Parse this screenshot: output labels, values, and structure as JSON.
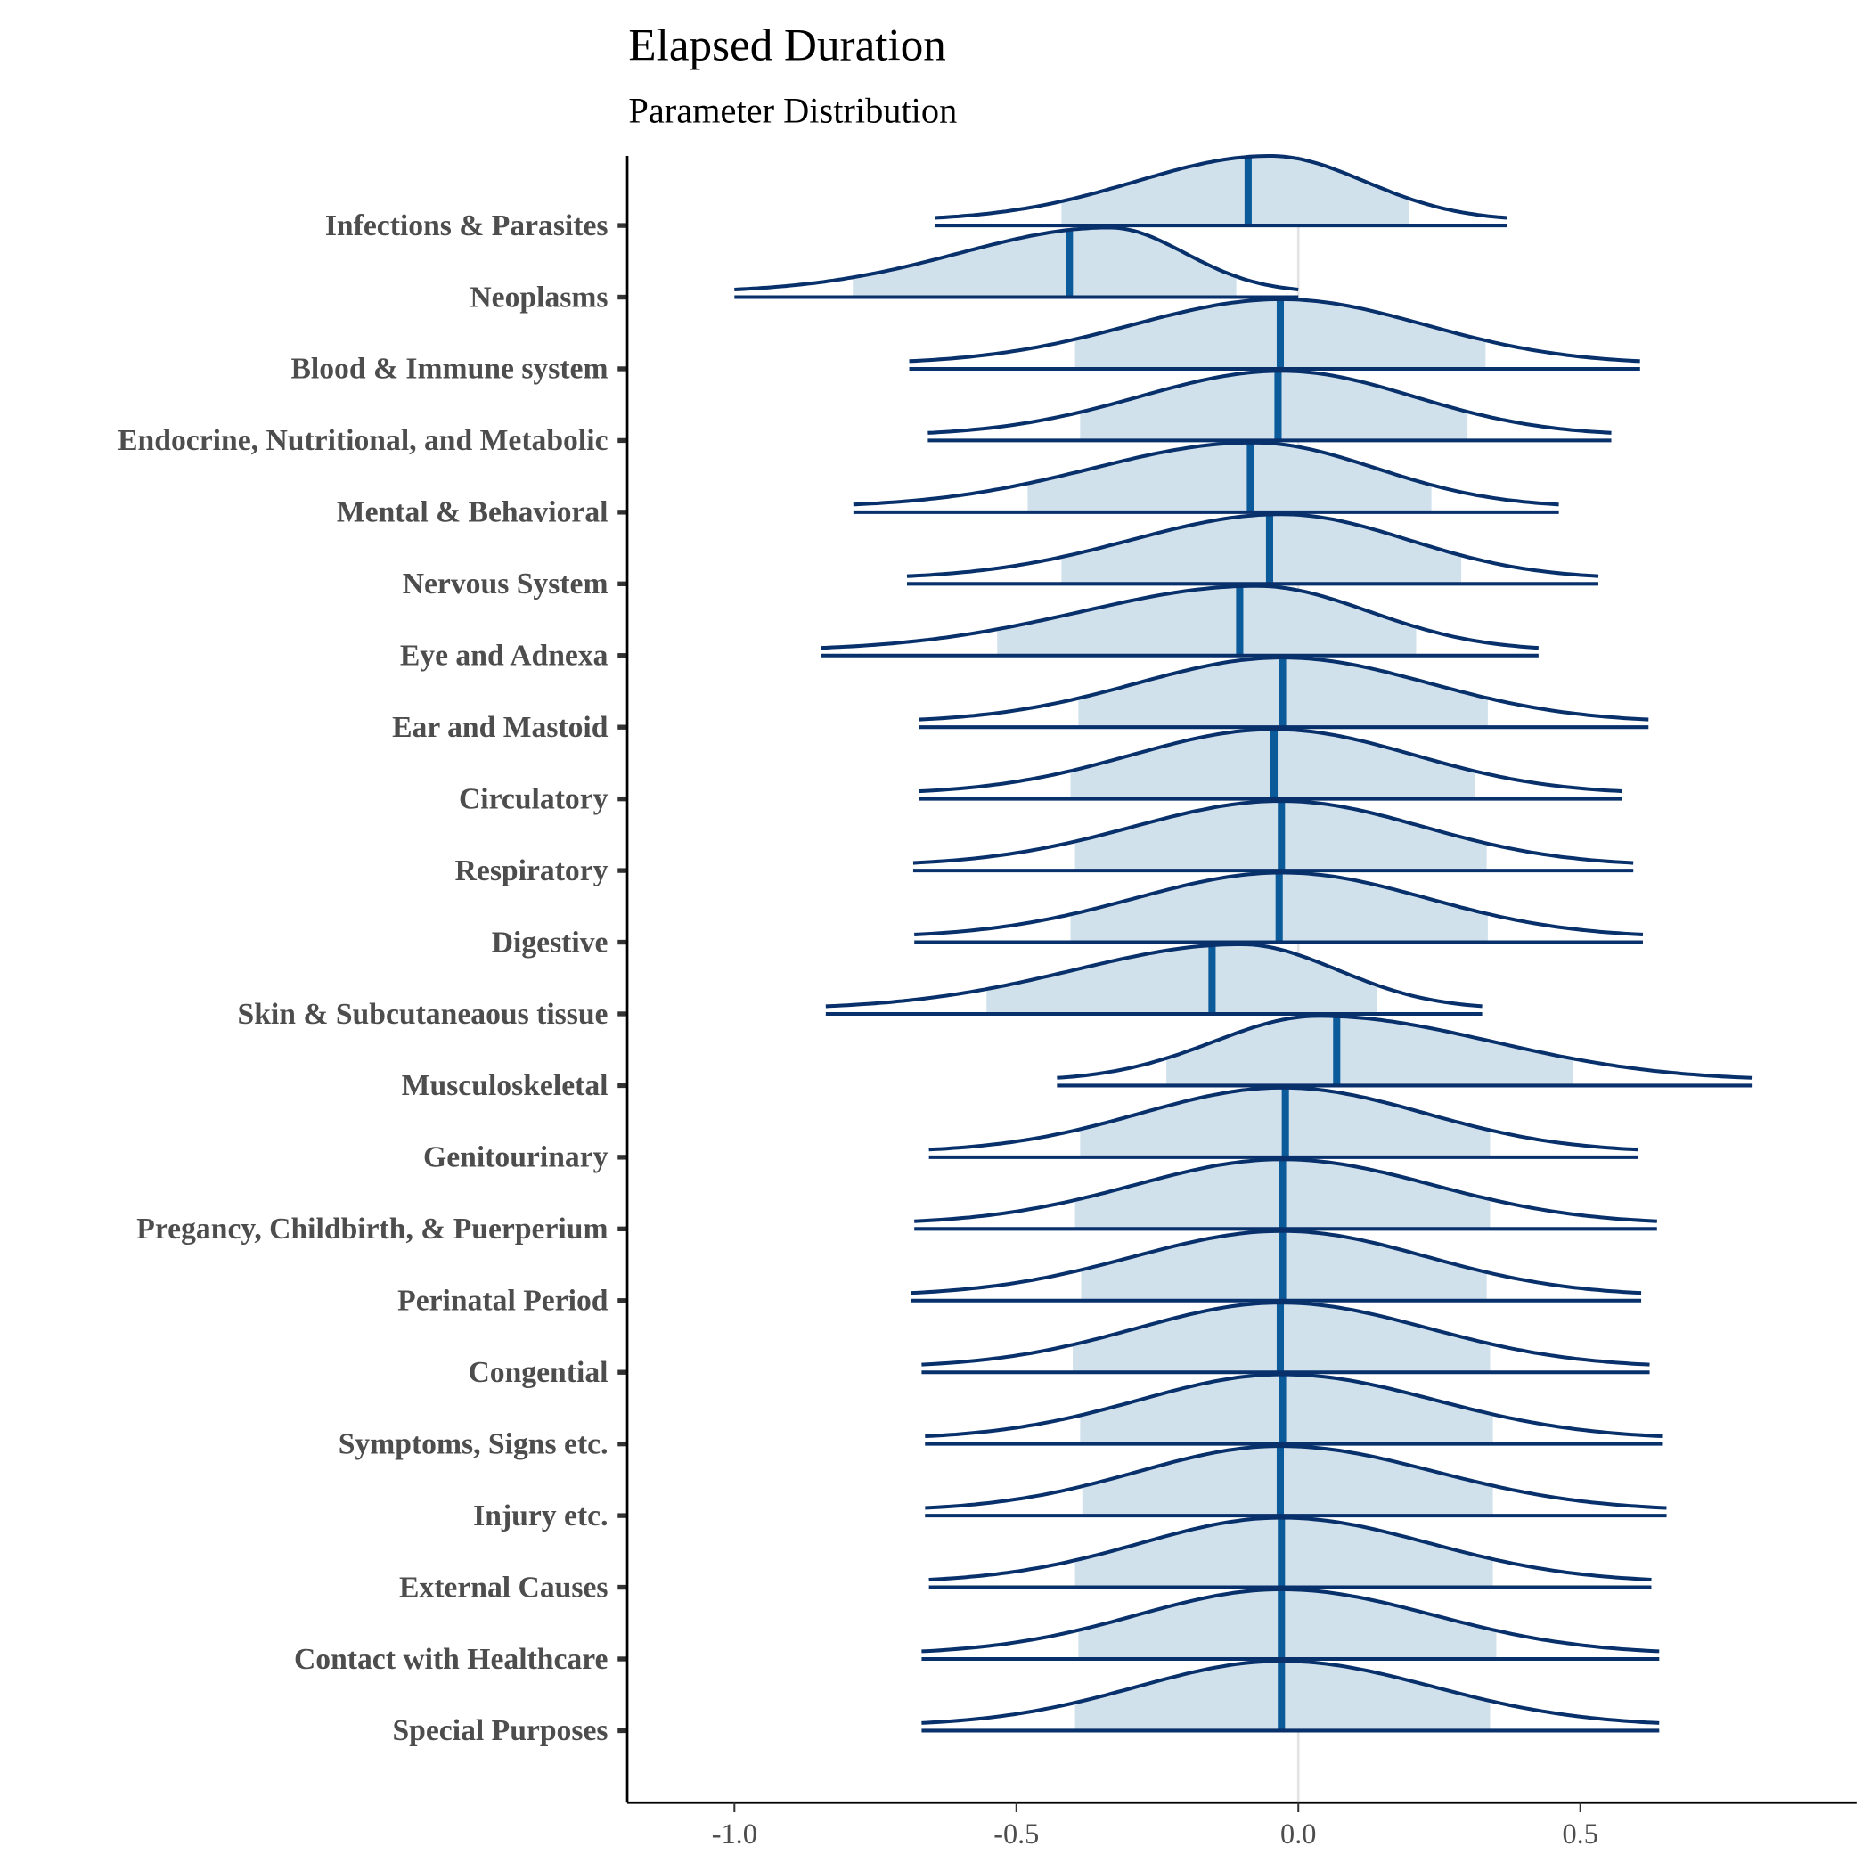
{
  "chart_data": {
    "type": "ridgeline",
    "title": "Elapsed Duration",
    "subtitle": "Parameter Distribution",
    "xlabel": "",
    "ylabel": "",
    "xlim": [
      -1.19,
      0.99
    ],
    "x_ticks": [
      "-1.0",
      "-0.5",
      "0.0",
      "0.5"
    ],
    "x_tick_values": [
      -1.0,
      -0.5,
      0.0,
      0.5
    ],
    "reference_line": 0.0,
    "grid": false,
    "colors": {
      "outline": "#08306b",
      "median": "#0b5a9a",
      "interval_fill": "#d1e1ec",
      "reference": "#e3e3e3"
    },
    "series": [
      {
        "name": "Infections & Parasites",
        "min": -0.645,
        "max": 0.37,
        "median": -0.089,
        "mode": -0.05,
        "interval": [
          -0.42,
          0.196
        ]
      },
      {
        "name": "Neoplasms",
        "min": -1.0,
        "max": 0.0,
        "median": -0.406,
        "mode": -0.335,
        "interval": [
          -0.79,
          -0.11
        ]
      },
      {
        "name": "Blood & Immune system",
        "min": -0.69,
        "max": 0.606,
        "median": -0.032,
        "mode": -0.03,
        "interval": [
          -0.396,
          0.332
        ]
      },
      {
        "name": "Endocrine, Nutritional, and Metabolic",
        "min": -0.657,
        "max": 0.555,
        "median": -0.036,
        "mode": -0.03,
        "interval": [
          -0.387,
          0.3
        ]
      },
      {
        "name": "Mental & Behavioral",
        "min": -0.789,
        "max": 0.462,
        "median": -0.085,
        "mode": -0.08,
        "interval": [
          -0.48,
          0.236
        ]
      },
      {
        "name": "Nervous System",
        "min": -0.694,
        "max": 0.532,
        "median": -0.051,
        "mode": -0.03,
        "interval": [
          -0.42,
          0.289
        ]
      },
      {
        "name": "Eye and Adnexa",
        "min": -0.847,
        "max": 0.426,
        "median": -0.104,
        "mode": -0.075,
        "interval": [
          -0.534,
          0.209
        ]
      },
      {
        "name": "Ear and Mastoid",
        "min": -0.672,
        "max": 0.621,
        "median": -0.028,
        "mode": -0.028,
        "interval": [
          -0.39,
          0.336
        ]
      },
      {
        "name": "Circulatory",
        "min": -0.672,
        "max": 0.574,
        "median": -0.043,
        "mode": -0.043,
        "interval": [
          -0.404,
          0.313
        ]
      },
      {
        "name": "Respiratory",
        "min": -0.683,
        "max": 0.594,
        "median": -0.03,
        "mode": -0.03,
        "interval": [
          -0.396,
          0.334
        ]
      },
      {
        "name": "Digestive",
        "min": -0.681,
        "max": 0.611,
        "median": -0.034,
        "mode": -0.028,
        "interval": [
          -0.404,
          0.336
        ]
      },
      {
        "name": "Skin & Subcutaneaous tissue",
        "min": -0.838,
        "max": 0.326,
        "median": -0.153,
        "mode": -0.102,
        "interval": [
          -0.553,
          0.14
        ]
      },
      {
        "name": "Musculoskeletal",
        "min": -0.428,
        "max": 0.804,
        "median": 0.068,
        "mode": 0.036,
        "interval": [
          -0.234,
          0.487
        ]
      },
      {
        "name": "Genitourinary",
        "min": -0.655,
        "max": 0.602,
        "median": -0.023,
        "mode": -0.028,
        "interval": [
          -0.387,
          0.34
        ]
      },
      {
        "name": "Pregancy, Childbirth, & Puerperium",
        "min": -0.681,
        "max": 0.636,
        "median": -0.028,
        "mode": -0.028,
        "interval": [
          -0.396,
          0.34
        ]
      },
      {
        "name": "Perinatal Period",
        "min": -0.687,
        "max": 0.608,
        "median": -0.028,
        "mode": -0.028,
        "interval": [
          -0.385,
          0.334
        ]
      },
      {
        "name": "Congential",
        "min": -0.668,
        "max": 0.623,
        "median": -0.032,
        "mode": -0.032,
        "interval": [
          -0.4,
          0.34
        ]
      },
      {
        "name": "Symptoms, Signs etc.",
        "min": -0.662,
        "max": 0.645,
        "median": -0.028,
        "mode": -0.028,
        "interval": [
          -0.387,
          0.345
        ]
      },
      {
        "name": "Injury etc.",
        "min": -0.662,
        "max": 0.653,
        "median": -0.032,
        "mode": -0.032,
        "interval": [
          -0.383,
          0.345
        ]
      },
      {
        "name": "External Causes",
        "min": -0.655,
        "max": 0.626,
        "median": -0.03,
        "mode": -0.03,
        "interval": [
          -0.396,
          0.345
        ]
      },
      {
        "name": "Contact with Healthcare",
        "min": -0.668,
        "max": 0.64,
        "median": -0.03,
        "mode": -0.03,
        "interval": [
          -0.39,
          0.351
        ]
      },
      {
        "name": "Special Purposes",
        "min": -0.668,
        "max": 0.64,
        "median": -0.03,
        "mode": -0.03,
        "interval": [
          -0.396,
          0.34
        ]
      }
    ]
  }
}
